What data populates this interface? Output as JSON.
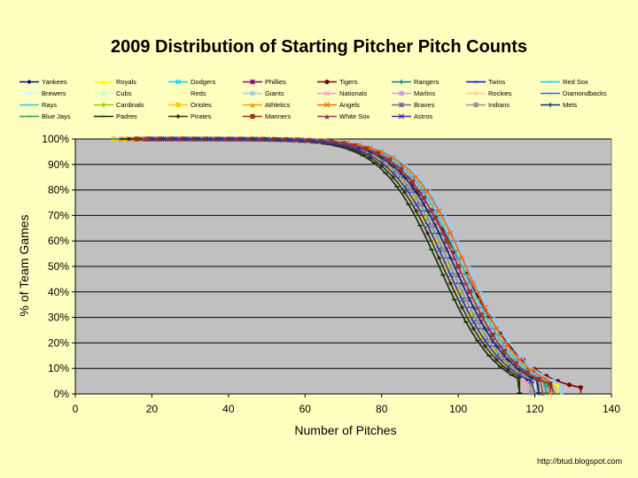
{
  "chart_data": {
    "type": "line",
    "title": "2009 Distribution of Starting Pitcher Pitch Counts",
    "xlabel": "Number of Pitches",
    "ylabel": "% of Team Games",
    "xlim": [
      0,
      140
    ],
    "ylim": [
      0,
      100
    ],
    "x_ticks": [
      0,
      20,
      40,
      60,
      80,
      100,
      120,
      140
    ],
    "y_ticks": [
      0,
      10,
      20,
      30,
      40,
      50,
      60,
      70,
      80,
      90,
      100
    ],
    "y_tick_format": "%",
    "grid": "horizontal",
    "legend_position": "top",
    "plot_background": "#c0c0c0",
    "series": [
      {
        "name": "Yankees",
        "color": "#000080",
        "marker": "diamond",
        "median": 97,
        "spread": 7.5,
        "xmax": 124
      },
      {
        "name": "Royals",
        "color": "#ffff00",
        "marker": "triangle",
        "median": 101,
        "spread": 7.5,
        "xmax": 126
      },
      {
        "name": "Dodgers",
        "color": "#00ccff",
        "marker": "x",
        "median": 98,
        "spread": 7.5,
        "xmax": 122
      },
      {
        "name": "Phillies",
        "color": "#800080",
        "marker": "star",
        "median": 99,
        "spread": 7.5,
        "xmax": 124
      },
      {
        "name": "Tigers",
        "color": "#800000",
        "marker": "circle",
        "median": 101,
        "spread": 8.5,
        "xmax": 132
      },
      {
        "name": "Rangers",
        "color": "#008080",
        "marker": "plus",
        "median": 98,
        "spread": 7.5,
        "xmax": 121
      },
      {
        "name": "Twins",
        "color": "#0000ff",
        "marker": "dash",
        "median": 98,
        "spread": 7.5,
        "xmax": 121
      },
      {
        "name": "Red Sox",
        "color": "#00ccff",
        "marker": "dash",
        "median": 102,
        "spread": 7.5,
        "xmax": 124
      },
      {
        "name": "Brewers",
        "color": "#ccffff",
        "marker": "circle",
        "median": 97,
        "spread": 7.5,
        "xmax": 120
      },
      {
        "name": "Cubs",
        "color": "#ccffcc",
        "marker": "square",
        "median": 100,
        "spread": 7.5,
        "xmax": 122
      },
      {
        "name": "Reds",
        "color": "#ffff99",
        "marker": "dash",
        "median": 98,
        "spread": 7.5,
        "xmax": 120
      },
      {
        "name": "Giants",
        "color": "#99ccff",
        "marker": "star",
        "median": 103,
        "spread": 7.5,
        "xmax": 127
      },
      {
        "name": "Nationals",
        "color": "#ff99cc",
        "marker": "x",
        "median": 95,
        "spread": 7.5,
        "xmax": 118
      },
      {
        "name": "Marlins",
        "color": "#cc99ff",
        "marker": "square",
        "median": 99,
        "spread": 7.5,
        "xmax": 121
      },
      {
        "name": "Rockies",
        "color": "#ffcc99",
        "marker": "plus",
        "median": 100,
        "spread": 7.5,
        "xmax": 122
      },
      {
        "name": "Diamondbacks",
        "color": "#3366ff",
        "marker": "dash",
        "median": 101,
        "spread": 7.5,
        "xmax": 123
      },
      {
        "name": "Rays",
        "color": "#33cccc",
        "marker": "dash",
        "median": 101,
        "spread": 7.5,
        "xmax": 123
      },
      {
        "name": "Cardinals",
        "color": "#99cc00",
        "marker": "diamond",
        "median": 98,
        "spread": 7.5,
        "xmax": 119
      },
      {
        "name": "Orioles",
        "color": "#ffcc00",
        "marker": "square",
        "median": 97,
        "spread": 7.5,
        "xmax": 116
      },
      {
        "name": "Athletics",
        "color": "#ff9900",
        "marker": "triangle",
        "median": 100,
        "spread": 7.5,
        "xmax": 122
      },
      {
        "name": "Angels",
        "color": "#ff6600",
        "marker": "x",
        "median": 102,
        "spread": 7.5,
        "xmax": 124
      },
      {
        "name": "Braves",
        "color": "#666699",
        "marker": "star",
        "median": 100,
        "spread": 7.5,
        "xmax": 121
      },
      {
        "name": "Indians",
        "color": "#969696",
        "marker": "square",
        "median": 98,
        "spread": 7.5,
        "xmax": 119
      },
      {
        "name": "Mets",
        "color": "#003366",
        "marker": "plus",
        "median": 99,
        "spread": 7.5,
        "xmax": 121
      },
      {
        "name": "Blue Jays",
        "color": "#339966",
        "marker": "dash",
        "median": 100,
        "spread": 7.5,
        "xmax": 123
      },
      {
        "name": "Padres",
        "color": "#003300",
        "marker": "dash",
        "median": 95,
        "spread": 7.5,
        "xmax": 116
      },
      {
        "name": "Pirates",
        "color": "#333300",
        "marker": "diamond",
        "median": 96,
        "spread": 7.5,
        "xmax": 116
      },
      {
        "name": "Mariners",
        "color": "#993300",
        "marker": "square",
        "median": 100,
        "spread": 7.5,
        "xmax": 125
      },
      {
        "name": "White Sox",
        "color": "#993366",
        "marker": "triangle",
        "median": 100,
        "spread": 7.5,
        "xmax": 122
      },
      {
        "name": "Astros",
        "color": "#333399",
        "marker": "x",
        "median": 97,
        "spread": 7.5,
        "xmax": 120
      }
    ]
  },
  "credit": "http://btud.blogspot.com"
}
